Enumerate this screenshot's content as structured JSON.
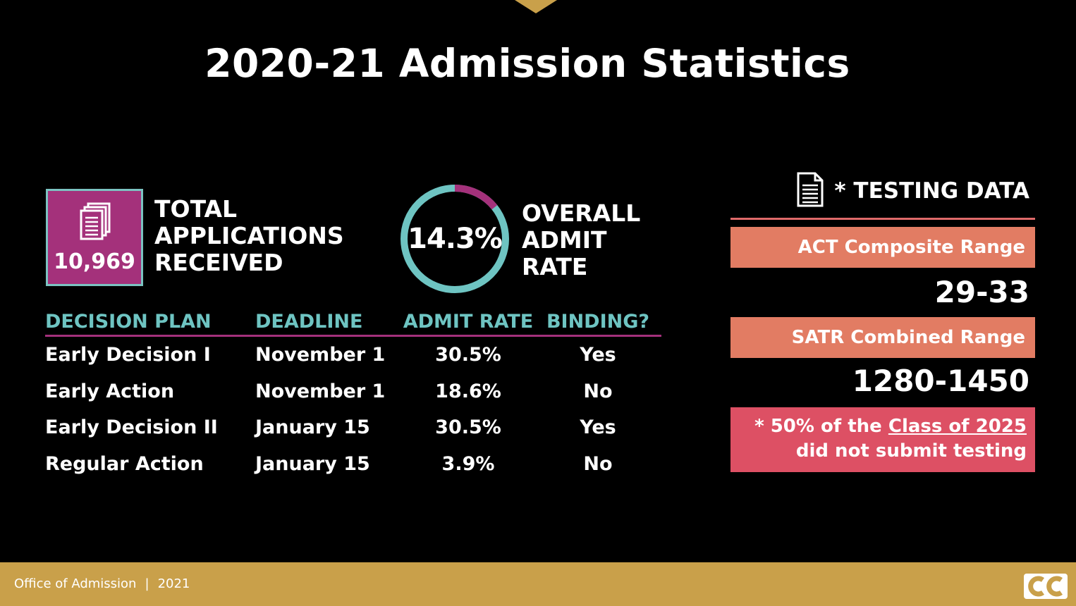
{
  "slide": {
    "title": "2020-21 Admission Statistics"
  },
  "applications": {
    "count": "10,969",
    "label_lines": [
      "TOTAL",
      "APPLICATIONS",
      "RECEIVED"
    ],
    "icon": "documents-icon"
  },
  "admit_rate": {
    "value": "14.3%",
    "fraction": 0.143,
    "label_lines": [
      "OVERALL",
      "ADMIT",
      "RATE"
    ]
  },
  "decision_table": {
    "headers": [
      "DECISION PLAN",
      "DEADLINE",
      "ADMIT RATE",
      "BINDING?"
    ],
    "rows": [
      [
        "Early Decision I",
        "November 1",
        "30.5%",
        "Yes"
      ],
      [
        "Early Action",
        "November 1",
        "18.6%",
        "No"
      ],
      [
        "Early Decision II",
        "January 15",
        "30.5%",
        "Yes"
      ],
      [
        "Regular Action",
        "January 15",
        "3.9%",
        "No"
      ]
    ]
  },
  "testing": {
    "title": "* TESTING DATA",
    "icon": "document-icon",
    "act_label": "ACT Composite Range",
    "act_value": "29-33",
    "sat_label": "SATR Combined Range",
    "sat_value": "1280-1450",
    "note_prefix": "* 50% of the ",
    "note_link": "Class of 2025",
    "note_suffix": "did not submit testing"
  },
  "footer": {
    "office": "Office of Admission",
    "separator": "|",
    "year": "2021",
    "logo": "cc-logo-icon"
  },
  "colors": {
    "background": "#000000",
    "gold": "#c9a04a",
    "magenta": "#a4317b",
    "teal": "#6ec4c2",
    "salmon": "#e27c63",
    "pink": "#dd5064"
  }
}
